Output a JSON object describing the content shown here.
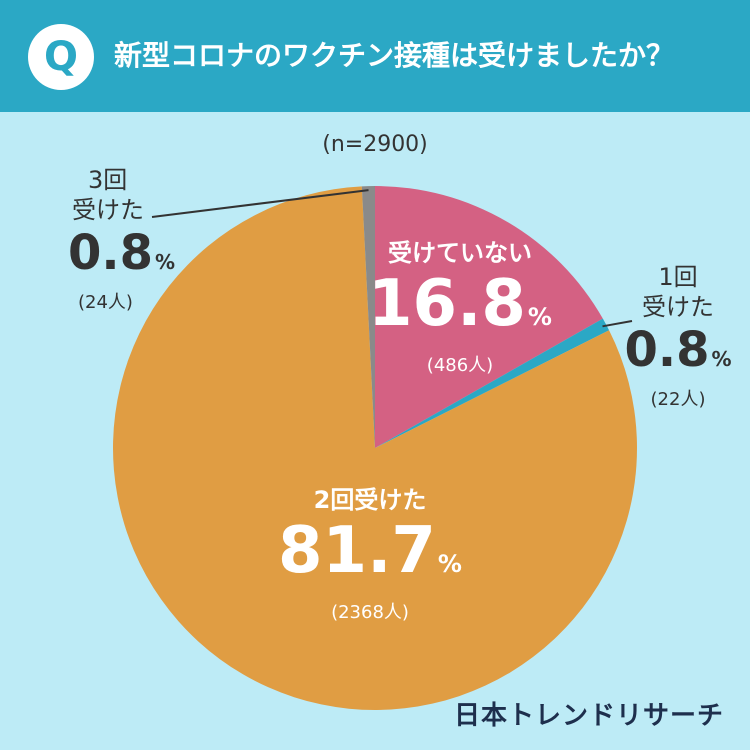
{
  "header": {
    "badge": "Q",
    "question": "新型コロナのワクチン接種は受けましたか？"
  },
  "sample_size": "(n=2900)",
  "logo_text": "日本トレンドリサーチ",
  "colors": {
    "header": "#2ba8c5",
    "background": "#bdebf6",
    "not_received": "#d46183",
    "one_dose": "#2ba8c5",
    "two_doses": "#e09d43",
    "three_doses": "#8a8a8a"
  },
  "chart_data": {
    "type": "pie",
    "slices": [
      {
        "label": "受けていない",
        "label_lines": [
          "受けていない"
        ],
        "value": 16.8,
        "count": "(486人)",
        "color": "#d46183"
      },
      {
        "label": "1回受けた",
        "label_lines": [
          "1回",
          "受けた"
        ],
        "value": 0.8,
        "count": "(22人)",
        "color": "#2ba8c5"
      },
      {
        "label": "2回受けた",
        "label_lines": [
          "2回受けた"
        ],
        "value": 81.7,
        "count": "(2368人)",
        "color": "#e09d43"
      },
      {
        "label": "3回受けた",
        "label_lines": [
          "3回",
          "受けた"
        ],
        "value": 0.8,
        "count": "(24人)",
        "color": "#8a8a8a"
      }
    ],
    "value_suffix": "%",
    "start_angle_deg": 0,
    "direction": "clockwise"
  }
}
